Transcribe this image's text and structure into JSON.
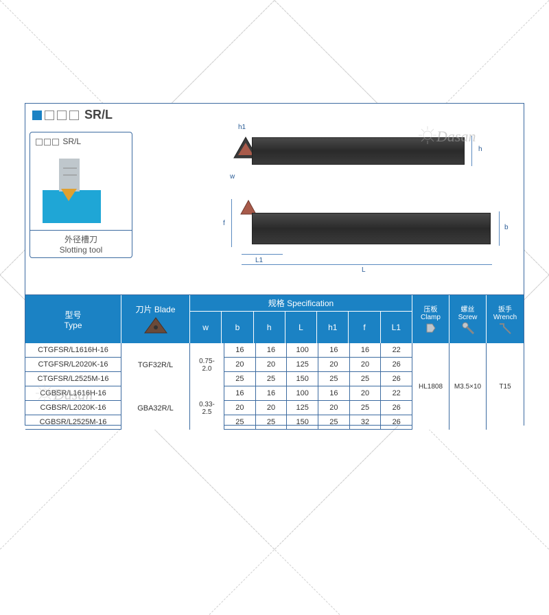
{
  "title": "SR/L",
  "callout": {
    "head": "SR/L",
    "label_cn": "外径槽刀",
    "label_en": "Slotting tool"
  },
  "dimensions": {
    "h1": "h1",
    "h": "h",
    "w": "w",
    "f": "f",
    "b": "b",
    "L1": "L1",
    "L": "L"
  },
  "header": {
    "type_cn": "型号",
    "type_en": "Type",
    "blade_cn": "刀片",
    "blade_en": "Blade",
    "spec_cn": "规格",
    "spec_en": "Specification",
    "clamp_cn": "压板",
    "clamp_en": "Clamp",
    "screw_cn": "螺丝",
    "screw_en": "Screw",
    "wrench_cn": "扳手",
    "wrench_en": "Wrench",
    "cols": [
      "w",
      "b",
      "h",
      "L",
      "h1",
      "f",
      "L1"
    ]
  },
  "blades": [
    "TGF32R/L",
    "GBA32R/L"
  ],
  "w_ranges": [
    "0.75-\n2.0",
    "0.33-\n2.5"
  ],
  "rows": [
    {
      "type": "CTGFSR/L1616H-16",
      "b": "16",
      "h": "16",
      "L": "100",
      "h1": "16",
      "f": "16",
      "L1": "22"
    },
    {
      "type": "CTGFSR/L2020K-16",
      "b": "20",
      "h": "20",
      "L": "125",
      "h1": "20",
      "f": "20",
      "L1": "26"
    },
    {
      "type": "CTGFSR/L2525M-16",
      "b": "25",
      "h": "25",
      "L": "150",
      "h1": "25",
      "f": "25",
      "L1": "26"
    },
    {
      "type": "CGBSR/L1616H-16",
      "b": "16",
      "h": "16",
      "L": "100",
      "h1": "16",
      "f": "20",
      "L1": "22"
    },
    {
      "type": "CGBSR/L2020K-16",
      "b": "20",
      "h": "20",
      "L": "125",
      "h1": "20",
      "f": "25",
      "L1": "26"
    },
    {
      "type": "CGBSR/L2525M-16",
      "b": "25",
      "h": "25",
      "L": "150",
      "h1": "25",
      "f": "32",
      "L1": "26"
    }
  ],
  "accessories": {
    "clamp": "HL1808",
    "screw": "M3.5×10",
    "wrench": "T15"
  },
  "watermark": "Dasan",
  "colors": {
    "brand_blue": "#1b82c4",
    "border_blue": "#3b6aa0",
    "tool_dark": "#2a2a2a",
    "insert_red": "#a85a4a",
    "work_blue": "#1fa6d6"
  }
}
